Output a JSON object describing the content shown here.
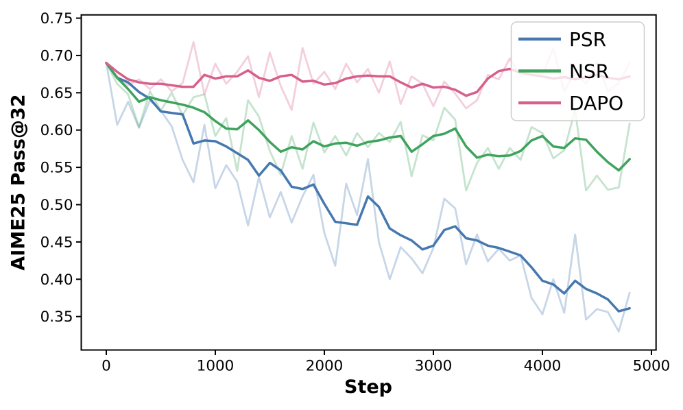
{
  "chart_data": {
    "type": "line",
    "title": "",
    "xlabel": "Step",
    "ylabel": "AIME25 Pass@32",
    "xticks": [
      0,
      1000,
      2000,
      3000,
      4000,
      5000
    ],
    "yticks": [
      0.35,
      0.4,
      0.45,
      0.5,
      0.55,
      0.6,
      0.65,
      0.7,
      0.75
    ],
    "xlim": [
      -230,
      5040
    ],
    "ylim": [
      0.306,
      0.755
    ],
    "grid": false,
    "legend_position": "upper right",
    "legend_labels": [
      "PSR",
      "NSR",
      "DAPO"
    ],
    "raw_line_opacity": 0.3,
    "steps": [
      0,
      100,
      200,
      300,
      400,
      500,
      600,
      700,
      800,
      900,
      1000,
      1100,
      1200,
      1300,
      1400,
      1500,
      1600,
      1700,
      1800,
      1900,
      2000,
      2100,
      2200,
      2300,
      2400,
      2500,
      2600,
      2700,
      2800,
      2900,
      3000,
      3100,
      3200,
      3300,
      3400,
      3500,
      3600,
      3700,
      3800,
      3900,
      4000,
      4100,
      4200,
      4300,
      4400,
      4500,
      4600,
      4700,
      4800
    ],
    "series": [
      {
        "name": "PSR",
        "color": "#4678B0",
        "smoothed": [
          0.69,
          0.67,
          0.664,
          0.651,
          0.642,
          0.625,
          0.623,
          0.621,
          0.582,
          0.586,
          0.585,
          0.578,
          0.569,
          0.56,
          0.539,
          0.556,
          0.546,
          0.524,
          0.521,
          0.527,
          0.501,
          0.477,
          0.475,
          0.473,
          0.511,
          0.497,
          0.468,
          0.459,
          0.452,
          0.44,
          0.445,
          0.466,
          0.471,
          0.455,
          0.452,
          0.445,
          0.442,
          0.437,
          0.432,
          0.416,
          0.398,
          0.393,
          0.381,
          0.398,
          0.387,
          0.381,
          0.373,
          0.357,
          0.361
        ],
        "raw": [
          0.69,
          0.607,
          0.638,
          0.603,
          0.64,
          0.626,
          0.605,
          0.56,
          0.53,
          0.607,
          0.522,
          0.553,
          0.531,
          0.472,
          0.537,
          0.483,
          0.517,
          0.476,
          0.511,
          0.54,
          0.462,
          0.418,
          0.528,
          0.486,
          0.561,
          0.45,
          0.4,
          0.443,
          0.428,
          0.408,
          0.442,
          0.508,
          0.495,
          0.42,
          0.46,
          0.424,
          0.441,
          0.425,
          0.432,
          0.375,
          0.353,
          0.4,
          0.355,
          0.46,
          0.346,
          0.36,
          0.356,
          0.33,
          0.382
        ]
      },
      {
        "name": "NSR",
        "color": "#3EA35C",
        "smoothed": [
          0.69,
          0.67,
          0.655,
          0.638,
          0.644,
          0.64,
          0.637,
          0.634,
          0.63,
          0.624,
          0.612,
          0.602,
          0.601,
          0.613,
          0.6,
          0.584,
          0.571,
          0.577,
          0.574,
          0.585,
          0.578,
          0.582,
          0.583,
          0.579,
          0.584,
          0.586,
          0.59,
          0.592,
          0.571,
          0.581,
          0.592,
          0.595,
          0.602,
          0.578,
          0.563,
          0.567,
          0.565,
          0.566,
          0.572,
          0.586,
          0.592,
          0.578,
          0.576,
          0.589,
          0.587,
          0.571,
          0.557,
          0.546,
          0.561
        ],
        "raw": [
          0.69,
          0.662,
          0.648,
          0.604,
          0.652,
          0.626,
          0.65,
          0.62,
          0.644,
          0.648,
          0.592,
          0.616,
          0.545,
          0.64,
          0.618,
          0.572,
          0.54,
          0.592,
          0.548,
          0.61,
          0.57,
          0.592,
          0.566,
          0.596,
          0.577,
          0.596,
          0.584,
          0.611,
          0.538,
          0.593,
          0.586,
          0.63,
          0.614,
          0.519,
          0.556,
          0.576,
          0.548,
          0.576,
          0.56,
          0.604,
          0.596,
          0.562,
          0.573,
          0.627,
          0.519,
          0.539,
          0.52,
          0.523,
          0.609
        ]
      },
      {
        "name": "DAPO",
        "color": "#D6608C",
        "smoothed": [
          0.69,
          0.678,
          0.668,
          0.664,
          0.662,
          0.662,
          0.66,
          0.658,
          0.658,
          0.674,
          0.669,
          0.672,
          0.672,
          0.68,
          0.67,
          0.666,
          0.672,
          0.674,
          0.665,
          0.666,
          0.661,
          0.663,
          0.669,
          0.672,
          0.673,
          0.672,
          0.672,
          0.664,
          0.657,
          0.662,
          0.657,
          0.658,
          0.654,
          0.646,
          0.651,
          0.669,
          0.679,
          0.682,
          0.677,
          0.674,
          0.672,
          0.669,
          0.671,
          0.668,
          0.671,
          0.674,
          0.67,
          0.668,
          0.672
        ],
        "raw": [
          0.69,
          0.672,
          0.66,
          0.668,
          0.655,
          0.668,
          0.652,
          0.663,
          0.718,
          0.648,
          0.689,
          0.662,
          0.678,
          0.699,
          0.644,
          0.704,
          0.659,
          0.627,
          0.71,
          0.662,
          0.678,
          0.655,
          0.689,
          0.664,
          0.682,
          0.65,
          0.692,
          0.635,
          0.672,
          0.662,
          0.632,
          0.665,
          0.649,
          0.629,
          0.64,
          0.674,
          0.668,
          0.696,
          0.672,
          0.68,
          0.674,
          0.71,
          0.652,
          0.678,
          0.662,
          0.692,
          0.652,
          0.663,
          0.69
        ]
      }
    ]
  }
}
